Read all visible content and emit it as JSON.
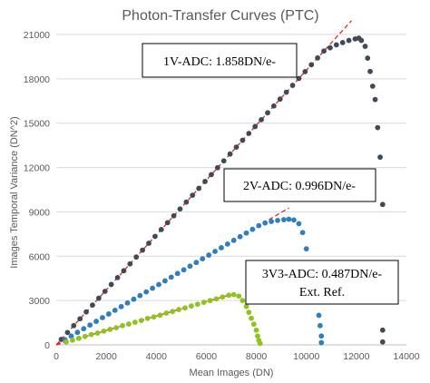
{
  "chart_data": {
    "type": "scatter",
    "title": "Photon-Transfer Curves (PTC)",
    "xlabel": "Mean Images (DN)",
    "ylabel": "Images Temporal  Variance (DN^2)",
    "xlim": [
      0,
      14000
    ],
    "ylim": [
      0,
      21000
    ],
    "x_ticks": [
      "0",
      "2000",
      "4000",
      "6000",
      "8000",
      "10000",
      "12000",
      "14000"
    ],
    "y_ticks": [
      "0",
      "3000",
      "6000",
      "9000",
      "12000",
      "15000",
      "18000",
      "21000"
    ],
    "grid": "horizontal",
    "series": [
      {
        "color": "#404a55",
        "fit_slope": 1.858,
        "linear_range": [
          200,
          11800
        ],
        "x": [
          200,
          450,
          700,
          950,
          1200,
          1450,
          1700,
          1950,
          2200,
          2450,
          2700,
          2950,
          3200,
          3450,
          3700,
          3950,
          4200,
          4450,
          4700,
          4950,
          5200,
          5450,
          5700,
          5950,
          6200,
          6450,
          6700,
          6950,
          7200,
          7450,
          7700,
          7950,
          8200,
          8450,
          8700,
          8950,
          9200,
          9450,
          9700,
          9950,
          10200,
          10450,
          10700,
          10950,
          11200,
          11450,
          11700,
          11950,
          12100,
          12200,
          12350,
          12450,
          12550,
          12650,
          12750,
          12850,
          12950,
          13050,
          13050,
          13050
        ],
        "y": [
          372,
          836,
          1301,
          1765,
          2230,
          2694,
          3159,
          3623,
          4088,
          4552,
          5017,
          5481,
          5946,
          6410,
          6875,
          7339,
          7804,
          8268,
          8733,
          9197,
          9662,
          10126,
          10591,
          11055,
          11520,
          11984,
          12449,
          12913,
          13378,
          13842,
          14307,
          14771,
          15236,
          15700,
          16165,
          16629,
          17094,
          17558,
          18023,
          18487,
          18952,
          19416,
          19881,
          20100,
          20300,
          20450,
          20600,
          20700,
          20750,
          20600,
          20200,
          19400,
          18500,
          17500,
          16600,
          14700,
          12700,
          9500,
          1000,
          200
        ]
      },
      {
        "color": "#2e7fc0",
        "fit_slope": 0.996,
        "linear_range": [
          350,
          9300
        ],
        "x": [
          350,
          600,
          850,
          1100,
          1350,
          1600,
          1850,
          2100,
          2350,
          2600,
          2850,
          3100,
          3350,
          3600,
          3850,
          4100,
          4350,
          4600,
          4850,
          5100,
          5350,
          5600,
          5850,
          6100,
          6350,
          6600,
          6850,
          7100,
          7350,
          7600,
          7850,
          8100,
          8350,
          8600,
          8850,
          9100,
          9300,
          9500,
          9700,
          9850,
          10000,
          10150,
          10300,
          10400,
          10500,
          10550,
          10600,
          10600
        ],
        "y": [
          349,
          598,
          847,
          1096,
          1345,
          1594,
          1843,
          2092,
          2341,
          2590,
          2839,
          3088,
          3337,
          3586,
          3835,
          4084,
          4333,
          4582,
          4831,
          5080,
          5329,
          5578,
          5827,
          6076,
          6325,
          6574,
          6823,
          7072,
          7321,
          7570,
          7818,
          8067,
          8250,
          8350,
          8420,
          8470,
          8500,
          8450,
          8200,
          7600,
          6500,
          5300,
          4000,
          3000,
          2000,
          1300,
          600,
          150
        ]
      },
      {
        "color": "#8fc31f",
        "fit_slope": 0.487,
        "linear_range": [
          400,
          7000
        ],
        "x": [
          400,
          650,
          900,
          1150,
          1400,
          1650,
          1900,
          2150,
          2400,
          2650,
          2900,
          3150,
          3400,
          3650,
          3900,
          4150,
          4400,
          4650,
          4900,
          5150,
          5400,
          5650,
          5900,
          6150,
          6400,
          6650,
          6900,
          7100,
          7300,
          7450,
          7600,
          7700,
          7800,
          7900,
          8000,
          8050,
          8100,
          8150
        ],
        "y": [
          200,
          320,
          440,
          570,
          700,
          800,
          930,
          1050,
          1160,
          1300,
          1410,
          1530,
          1650,
          1790,
          1890,
          2010,
          2150,
          2260,
          2390,
          2500,
          2630,
          2750,
          2880,
          3000,
          3110,
          3240,
          3360,
          3400,
          3300,
          3000,
          2600,
          2200,
          1800,
          1400,
          1000,
          600,
          300,
          100
        ]
      }
    ],
    "annotations": [
      {
        "text": "1V-ADC: 1.858DN/e-",
        "position": "top-center"
      },
      {
        "text": "2V-ADC: 0.996DN/e-",
        "position": "center-right"
      },
      {
        "text": "3V3-ADC: 0.487DN/e-",
        "text2": "Ext. Ref.",
        "position": "bottom-right"
      }
    ]
  }
}
